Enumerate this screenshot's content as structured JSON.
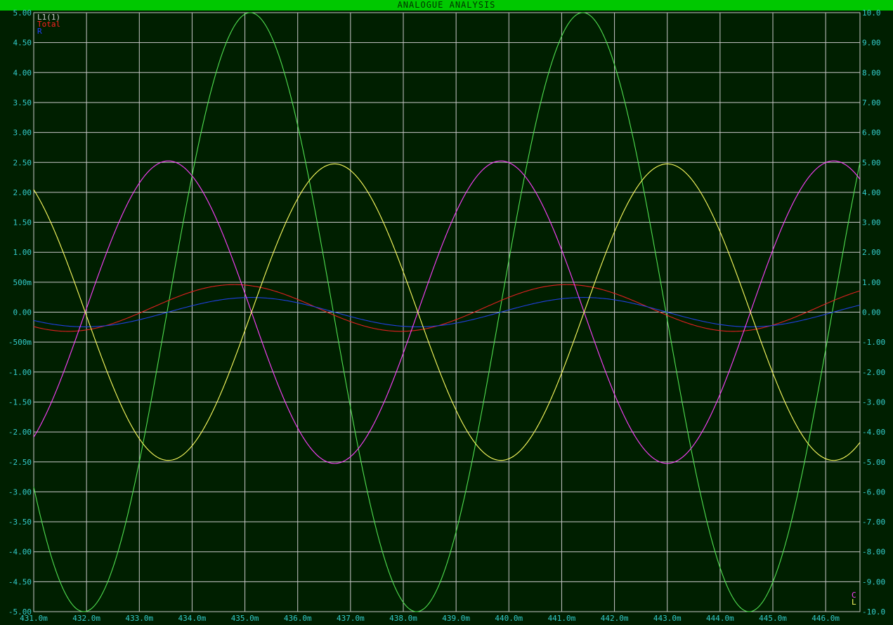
{
  "window": {
    "title": "ANALOGUE ANALYSIS",
    "background": "#001f00",
    "title_bar_color": "#00c800",
    "grid_color": "#c8c8c8",
    "tick_color": "#33cccc"
  },
  "chart_data": {
    "type": "line",
    "title": "ANALOGUE ANALYSIS",
    "x_tick_labels": [
      "431.0m",
      "432.0m",
      "433.0m",
      "434.0m",
      "435.0m",
      "436.0m",
      "437.0m",
      "438.0m",
      "439.0m",
      "440.0m",
      "441.0m",
      "442.0m",
      "443.0m",
      "444.0m",
      "445.0m",
      "446.0m"
    ],
    "x_tick_values": [
      431.0,
      432.0,
      433.0,
      434.0,
      435.0,
      436.0,
      437.0,
      438.0,
      439.0,
      440.0,
      441.0,
      442.0,
      443.0,
      444.0,
      445.0,
      446.0
    ],
    "xlim": [
      431.0,
      446.65
    ],
    "y_left_tick_labels": [
      "5.00",
      "4.50",
      "4.00",
      "3.50",
      "3.00",
      "2.50",
      "2.00",
      "1.50",
      "1.00",
      "500m",
      "0.00",
      "-500m",
      "-1.00",
      "-1.50",
      "-2.00",
      "-2.50",
      "-3.00",
      "-3.50",
      "-4.00",
      "-4.50",
      "-5.00"
    ],
    "y_left_lim": [
      -5.0,
      5.0
    ],
    "y_right_tick_labels": [
      "10.0",
      "9.00",
      "8.00",
      "7.00",
      "6.00",
      "5.00",
      "4.00",
      "3.00",
      "2.00",
      "1.00",
      "0.00",
      "-1.00",
      "-2.00",
      "-3.00",
      "-4.00",
      "-5.00",
      "-6.00",
      "-7.00",
      "-8.00",
      "-9.00",
      "-10.0"
    ],
    "y_right_lim": [
      -10.0,
      10.0
    ],
    "grid": true,
    "legend_left": [
      {
        "name": "L1(1)",
        "color": "#c8c8c8"
      },
      {
        "name": "Total",
        "color": "#ff2020"
      },
      {
        "name": "R",
        "color": "#2040ff"
      }
    ],
    "legend_right": [
      {
        "name": "C",
        "color": "#ff40ff"
      },
      {
        "name": "L",
        "color": "#ffff60"
      }
    ],
    "series": [
      {
        "name": "L1(1)",
        "axis": "left",
        "color": "#50e050",
        "amplitude": 5.0,
        "period": 6.3,
        "peak_at": 435.1
      },
      {
        "name": "Total",
        "axis": "left",
        "color": "#e02020",
        "amplitude": 0.39,
        "offset": 0.07,
        "period": 6.3,
        "peak_at": 434.8
      },
      {
        "name": "R",
        "axis": "left",
        "color": "#2040e0",
        "amplitude": 0.245,
        "period": 6.3,
        "peak_at": 435.12
      },
      {
        "name": "C",
        "axis": "right",
        "color": "#ff40ff",
        "amplitude": 5.05,
        "period": 6.3,
        "peak_at": 433.55
      },
      {
        "name": "L",
        "axis": "right",
        "color": "#ffff60",
        "amplitude": 4.95,
        "period": 6.3,
        "peak_at": 436.7
      }
    ]
  }
}
